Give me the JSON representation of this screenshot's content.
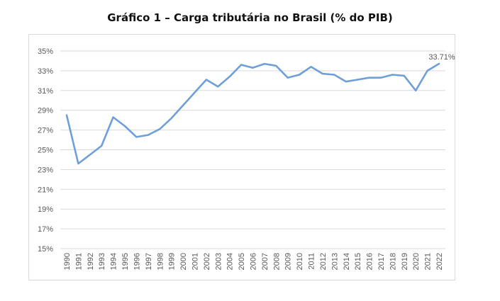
{
  "chart_data": {
    "type": "line",
    "title": "Gráfico 1 – Carga tributária no Brasil (% do PIB)",
    "xlabel": "",
    "ylabel": "",
    "ylim": [
      15,
      35
    ],
    "y_ticks": [
      "15%",
      "17%",
      "19%",
      "21%",
      "23%",
      "25%",
      "27%",
      "29%",
      "31%",
      "33%",
      "35%"
    ],
    "grid": true,
    "legend": "none",
    "categories": [
      "1990",
      "1991",
      "1992",
      "1993",
      "1994",
      "1995",
      "1996",
      "1997",
      "1998",
      "1999",
      "2000",
      "2001",
      "2002",
      "2003",
      "2004",
      "2005",
      "2006",
      "2007",
      "2008",
      "2009",
      "2010",
      "2011",
      "2012",
      "2013",
      "2014",
      "2015",
      "2016",
      "2017",
      "2018",
      "2019",
      "2020",
      "2021",
      "2022"
    ],
    "series": [
      {
        "color": "#6f9fd8",
        "values": [
          28.5,
          23.6,
          24.5,
          25.4,
          28.3,
          27.4,
          26.3,
          26.5,
          27.1,
          28.2,
          29.5,
          30.8,
          32.1,
          31.4,
          32.4,
          33.6,
          33.3,
          33.7,
          33.5,
          32.3,
          32.6,
          33.4,
          32.7,
          32.6,
          31.9,
          32.1,
          32.3,
          32.3,
          32.6,
          32.5,
          31.0,
          33.0,
          33.71
        ]
      }
    ],
    "data_labels": [
      {
        "index": 32,
        "text": "33.71%"
      }
    ]
  }
}
